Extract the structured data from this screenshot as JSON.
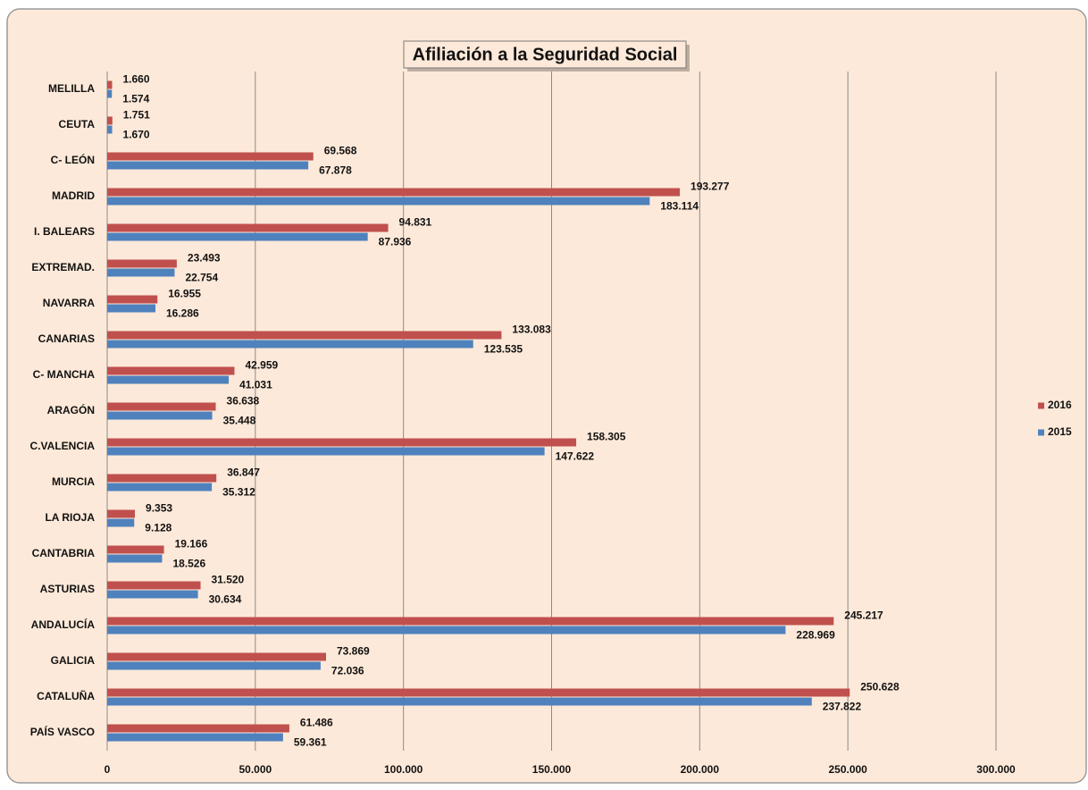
{
  "chart_data": {
    "type": "bar",
    "orientation": "horizontal",
    "title": "Afiliación a la Seguridad Social",
    "categories": [
      "MELILLA",
      "CEUTA",
      "C- LEÓN",
      "MADRID",
      "I. BALEARS",
      "EXTREMAD.",
      "NAVARRA",
      "CANARIAS",
      "C- MANCHA",
      "ARAGÓN",
      "C.VALENCIA",
      "MURCIA",
      "LA RIOJA",
      "CANTABRIA",
      "ASTURIAS",
      "ANDALUCÍA",
      "GALICIA",
      "CATALUÑA",
      "PAÍS VASCO"
    ],
    "series": [
      {
        "name": "2016",
        "color": "#c0504d",
        "values": [
          1660,
          1751,
          69568,
          193277,
          94831,
          23493,
          16955,
          133083,
          42959,
          36638,
          158305,
          36847,
          9353,
          19166,
          31520,
          245217,
          73869,
          250628,
          61486
        ],
        "value_labels": [
          "1.660",
          "1.751",
          "69.568",
          "193.277",
          "94.831",
          "23.493",
          "16.955",
          "133.083",
          "42.959",
          "36.638",
          "158.305",
          "36.847",
          "9.353",
          "19.166",
          "31.520",
          "245.217",
          "73.869",
          "250.628",
          "61.486"
        ]
      },
      {
        "name": "2015",
        "color": "#4f81bd",
        "values": [
          1574,
          1670,
          67878,
          183114,
          87936,
          22754,
          16286,
          123535,
          41031,
          35448,
          147622,
          35312,
          9128,
          18526,
          30634,
          228969,
          72036,
          237822,
          59361
        ],
        "value_labels": [
          "1.574",
          "1.670",
          "67.878",
          "183.114",
          "87.936",
          "22.754",
          "16.286",
          "123.535",
          "41.031",
          "35.448",
          "147.622",
          "35.312",
          "9.128",
          "18.526",
          "30.634",
          "228.969",
          "72.036",
          "237.822",
          "59.361"
        ]
      }
    ],
    "xlim": [
      0,
      300000
    ],
    "xticks": [
      0,
      {
        "value": 50000,
        "label": "50.000"
      },
      {
        "value": 100000,
        "label": "100.000"
      },
      {
        "value": 150000,
        "label": "150.000"
      },
      {
        "value": 200000,
        "label": "200.000"
      },
      {
        "value": 250000,
        "label": "250.000"
      },
      {
        "value": 300000,
        "label": "300.000"
      }
    ],
    "grid": true,
    "legend": "right"
  }
}
